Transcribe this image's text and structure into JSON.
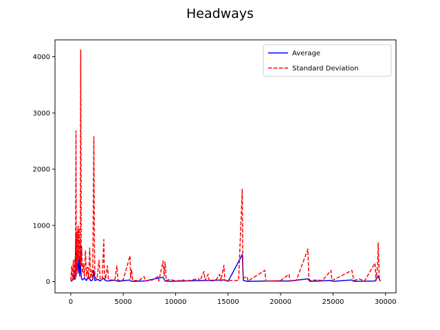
{
  "chart_data": {
    "type": "line",
    "title": "Headways",
    "xlabel": "",
    "ylabel": "",
    "xlim": [
      -1500,
      31000
    ],
    "ylim": [
      -200,
      4300
    ],
    "xticks": [
      0,
      5000,
      10000,
      15000,
      20000,
      25000,
      30000
    ],
    "yticks": [
      0,
      1000,
      2000,
      3000,
      4000
    ],
    "grid": false,
    "legend_position": "top-right",
    "series": [
      {
        "name": "Average",
        "color": "#0000ff",
        "style": "solid",
        "points": [
          [
            0,
            5
          ],
          [
            200,
            30
          ],
          [
            300,
            120
          ],
          [
            400,
            40
          ],
          [
            500,
            880
          ],
          [
            550,
            200
          ],
          [
            600,
            500
          ],
          [
            700,
            150
          ],
          [
            800,
            450
          ],
          [
            850,
            100
          ],
          [
            900,
            700
          ],
          [
            950,
            200
          ],
          [
            1000,
            80
          ],
          [
            1100,
            30
          ],
          [
            1300,
            60
          ],
          [
            1500,
            20
          ],
          [
            1700,
            100
          ],
          [
            1900,
            15
          ],
          [
            2100,
            30
          ],
          [
            2200,
            200
          ],
          [
            2300,
            20
          ],
          [
            2600,
            40
          ],
          [
            2800,
            10
          ],
          [
            3100,
            60
          ],
          [
            3300,
            20
          ],
          [
            3500,
            10
          ],
          [
            4200,
            25
          ],
          [
            4500,
            5
          ],
          [
            5600,
            30
          ],
          [
            5800,
            5
          ],
          [
            7000,
            10
          ],
          [
            8800,
            80
          ],
          [
            9000,
            10
          ],
          [
            9500,
            5
          ],
          [
            12700,
            20
          ],
          [
            14600,
            30
          ],
          [
            15000,
            5
          ],
          [
            16350,
            480
          ],
          [
            16450,
            20
          ],
          [
            16800,
            5
          ],
          [
            18500,
            10
          ],
          [
            20800,
            10
          ],
          [
            22600,
            50
          ],
          [
            22800,
            5
          ],
          [
            24800,
            20
          ],
          [
            25000,
            5
          ],
          [
            26800,
            30
          ],
          [
            27000,
            5
          ],
          [
            29000,
            10
          ],
          [
            29300,
            100
          ],
          [
            29500,
            5
          ]
        ]
      },
      {
        "name": "Standard Deviation",
        "color": "#ff0000",
        "style": "dashed",
        "points": [
          [
            0,
            20
          ],
          [
            100,
            280
          ],
          [
            150,
            20
          ],
          [
            250,
            380
          ],
          [
            300,
            30
          ],
          [
            350,
            220
          ],
          [
            400,
            400
          ],
          [
            450,
            50
          ],
          [
            500,
            2680
          ],
          [
            530,
            100
          ],
          [
            560,
            600
          ],
          [
            600,
            900
          ],
          [
            650,
            200
          ],
          [
            700,
            1000
          ],
          [
            750,
            400
          ],
          [
            800,
            950
          ],
          [
            850,
            600
          ],
          [
            900,
            300
          ],
          [
            950,
            4120
          ],
          [
            1000,
            300
          ],
          [
            1050,
            620
          ],
          [
            1100,
            150
          ],
          [
            1200,
            320
          ],
          [
            1300,
            80
          ],
          [
            1400,
            550
          ],
          [
            1500,
            100
          ],
          [
            1600,
            260
          ],
          [
            1700,
            50
          ],
          [
            1800,
            600
          ],
          [
            1900,
            60
          ],
          [
            2000,
            200
          ],
          [
            2100,
            40
          ],
          [
            2200,
            2580
          ],
          [
            2250,
            800
          ],
          [
            2300,
            100
          ],
          [
            2400,
            60
          ],
          [
            2500,
            40
          ],
          [
            2700,
            380
          ],
          [
            2800,
            50
          ],
          [
            3000,
            40
          ],
          [
            3150,
            750
          ],
          [
            3200,
            200
          ],
          [
            3300,
            40
          ],
          [
            3500,
            280
          ],
          [
            3600,
            30
          ],
          [
            4200,
            30
          ],
          [
            4400,
            280
          ],
          [
            4500,
            20
          ],
          [
            5000,
            30
          ],
          [
            5650,
            460
          ],
          [
            5700,
            60
          ],
          [
            5800,
            220
          ],
          [
            5900,
            20
          ],
          [
            6500,
            20
          ],
          [
            7000,
            90
          ],
          [
            7100,
            10
          ],
          [
            7800,
            30
          ],
          [
            8300,
            90
          ],
          [
            8400,
            10
          ],
          [
            8800,
            370
          ],
          [
            8900,
            100
          ],
          [
            9000,
            350
          ],
          [
            9100,
            20
          ],
          [
            9500,
            40
          ],
          [
            10000,
            10
          ],
          [
            10700,
            30
          ],
          [
            11000,
            10
          ],
          [
            11800,
            40
          ],
          [
            12200,
            50
          ],
          [
            12300,
            10
          ],
          [
            12700,
            180
          ],
          [
            12800,
            20
          ],
          [
            13100,
            130
          ],
          [
            13200,
            10
          ],
          [
            13800,
            20
          ],
          [
            14200,
            130
          ],
          [
            14300,
            10
          ],
          [
            14600,
            290
          ],
          [
            14700,
            20
          ],
          [
            15000,
            20
          ],
          [
            16000,
            20
          ],
          [
            16350,
            1650
          ],
          [
            16400,
            300
          ],
          [
            16450,
            60
          ],
          [
            16800,
            90
          ],
          [
            16900,
            10
          ],
          [
            18500,
            200
          ],
          [
            18600,
            10
          ],
          [
            20000,
            20
          ],
          [
            20800,
            130
          ],
          [
            20900,
            10
          ],
          [
            21500,
            20
          ],
          [
            22600,
            580
          ],
          [
            22700,
            60
          ],
          [
            22800,
            20
          ],
          [
            23500,
            30
          ],
          [
            24000,
            20
          ],
          [
            24800,
            200
          ],
          [
            24900,
            20
          ],
          [
            26800,
            200
          ],
          [
            26900,
            100
          ],
          [
            27000,
            20
          ],
          [
            27500,
            50
          ],
          [
            28000,
            10
          ],
          [
            29000,
            330
          ],
          [
            29100,
            20
          ],
          [
            29250,
            300
          ],
          [
            29300,
            690
          ],
          [
            29350,
            400
          ],
          [
            29400,
            50
          ],
          [
            29500,
            10
          ]
        ]
      }
    ]
  }
}
